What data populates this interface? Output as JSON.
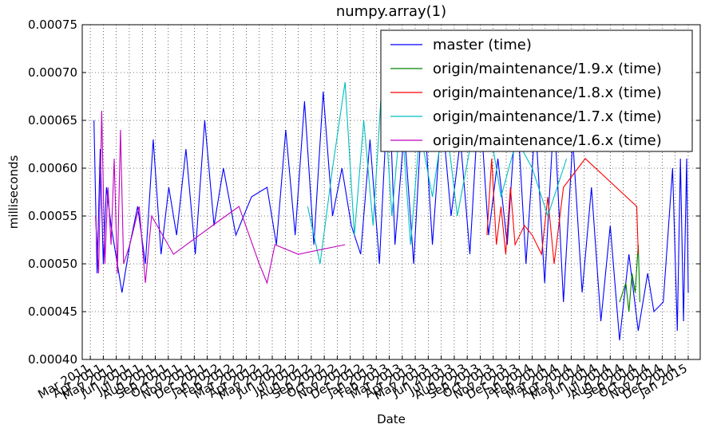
{
  "chart_data": {
    "type": "line",
    "title": "numpy.array(1)",
    "xlabel": "Date",
    "ylabel": "milliseconds",
    "xlim": [
      2011.115,
      2015.077
    ],
    "ylim": [
      0.0004,
      0.00075
    ],
    "yticks": [
      {
        "value": 0.0004,
        "label": "0.00040"
      },
      0.00045,
      {
        "value": 0.0005,
        "label": "0.00050"
      },
      0.00055,
      {
        "value": 0.0006,
        "label": "0.00060"
      },
      0.00065,
      {
        "value": 0.0007,
        "label": "0.00070"
      },
      0.00075
    ],
    "xticks": [
      {
        "value": 2011.1667,
        "label": "Mar 2011"
      },
      {
        "value": 2011.25,
        "label": "Apr 2011"
      },
      {
        "value": 2011.3333,
        "label": "May 2011"
      },
      {
        "value": 2011.4167,
        "label": "Jun 2011"
      },
      {
        "value": 2011.5,
        "label": "Jul 2011"
      },
      {
        "value": 2011.5833,
        "label": "Aug 2011"
      },
      {
        "value": 2011.6667,
        "label": "Sep 2011"
      },
      {
        "value": 2011.75,
        "label": "Oct 2011"
      },
      {
        "value": 2011.8333,
        "label": "Nov 2011"
      },
      {
        "value": 2011.9167,
        "label": "Dec 2011"
      },
      {
        "value": 2012.0,
        "label": "Jan 2012"
      },
      {
        "value": 2012.0833,
        "label": "Feb 2012"
      },
      {
        "value": 2012.1667,
        "label": "Mar 2012"
      },
      {
        "value": 2012.25,
        "label": "Apr 2012"
      },
      {
        "value": 2012.3333,
        "label": "May 2012"
      },
      {
        "value": 2012.4167,
        "label": "Jun 2012"
      },
      {
        "value": 2012.5,
        "label": "Jul 2012"
      },
      {
        "value": 2012.5833,
        "label": "Aug 2012"
      },
      {
        "value": 2012.6667,
        "label": "Sep 2012"
      },
      {
        "value": 2012.75,
        "label": "Oct 2012"
      },
      {
        "value": 2012.8333,
        "label": "Nov 2012"
      },
      {
        "value": 2012.9167,
        "label": "Dec 2012"
      },
      {
        "value": 2013.0,
        "label": "Jan 2013"
      },
      {
        "value": 2013.0833,
        "label": "Feb 2013"
      },
      {
        "value": 2013.1667,
        "label": "Mar 2013"
      },
      {
        "value": 2013.25,
        "label": "Apr 2013"
      },
      {
        "value": 2013.3333,
        "label": "May 2013"
      },
      {
        "value": 2013.4167,
        "label": "Jun 2013"
      },
      {
        "value": 2013.5,
        "label": "Jul 2013"
      },
      {
        "value": 2013.5833,
        "label": "Aug 2013"
      },
      {
        "value": 2013.6667,
        "label": "Sep 2013"
      },
      {
        "value": 2013.75,
        "label": "Oct 2013"
      },
      {
        "value": 2013.8333,
        "label": "Nov 2013"
      },
      {
        "value": 2013.9167,
        "label": "Dec 2013"
      },
      {
        "value": 2014.0,
        "label": "Jan 2014"
      },
      {
        "value": 2014.0833,
        "label": "Feb 2014"
      },
      {
        "value": 2014.1667,
        "label": "Mar 2014"
      },
      {
        "value": 2014.25,
        "label": "Apr 2014"
      },
      {
        "value": 2014.3333,
        "label": "May 2014"
      },
      {
        "value": 2014.4167,
        "label": "Jun 2014"
      },
      {
        "value": 2014.5,
        "label": "Jul 2014"
      },
      {
        "value": 2014.5833,
        "label": "Aug 2014"
      },
      {
        "value": 2014.6667,
        "label": "Sep 2014"
      },
      {
        "value": 2014.75,
        "label": "Oct 2014"
      },
      {
        "value": 2014.8333,
        "label": "Nov 2014"
      },
      {
        "value": 2014.9167,
        "label": "Dec 2014"
      },
      {
        "value": 2015.0,
        "label": "Jan 2015"
      }
    ],
    "grid": true,
    "legend_loc": "upper right",
    "series": [
      {
        "name": "master (time)",
        "color": "#0000ff",
        "x": [
          2011.19,
          2011.21,
          2011.23,
          2011.25,
          2011.27,
          2011.3,
          2011.37,
          2011.42,
          2011.47,
          2011.52,
          2011.57,
          2011.62,
          2011.67,
          2011.72,
          2011.78,
          2011.84,
          2011.9,
          2011.96,
          2012.02,
          2012.1,
          2012.2,
          2012.3,
          2012.36,
          2012.42,
          2012.48,
          2012.54,
          2012.6,
          2012.66,
          2012.72,
          2012.78,
          2012.84,
          2012.9,
          2012.96,
          2013.02,
          2013.08,
          2013.12,
          2013.18,
          2013.24,
          2013.3,
          2013.36,
          2013.42,
          2013.48,
          2013.54,
          2013.6,
          2013.66,
          2013.72,
          2013.78,
          2013.84,
          2013.9,
          2013.96,
          2014.02,
          2014.08,
          2014.14,
          2014.2,
          2014.26,
          2014.32,
          2014.38,
          2014.44,
          2014.5,
          2014.56,
          2014.62,
          2014.68,
          2014.74,
          2014.78,
          2014.84,
          2014.9,
          2014.93,
          2014.95,
          2014.97,
          2014.99,
          2015.0
        ],
        "values": [
          0.00065,
          0.00049,
          0.00062,
          0.0005,
          0.00058,
          0.00054,
          0.00047,
          0.00052,
          0.00056,
          0.0005,
          0.00063,
          0.00051,
          0.00058,
          0.00053,
          0.00062,
          0.00051,
          0.00065,
          0.00054,
          0.0006,
          0.00053,
          0.00057,
          0.00058,
          0.00052,
          0.00064,
          0.00053,
          0.00067,
          0.00052,
          0.00068,
          0.00055,
          0.0006,
          0.00054,
          0.00051,
          0.00063,
          0.0005,
          0.0007,
          0.00052,
          0.00064,
          0.0005,
          0.00068,
          0.00052,
          0.00066,
          0.00055,
          0.00063,
          0.00051,
          0.00068,
          0.00053,
          0.00061,
          0.00052,
          0.00067,
          0.0005,
          0.00065,
          0.00048,
          0.00066,
          0.00046,
          0.00063,
          0.00047,
          0.00058,
          0.00044,
          0.00054,
          0.00042,
          0.00051,
          0.00043,
          0.00049,
          0.00045,
          0.00046,
          0.0006,
          0.00043,
          0.00061,
          0.00044,
          0.00061,
          0.00047
        ]
      },
      {
        "name": "origin/maintenance/1.9.x (time)",
        "color": "#008000",
        "x": [
          2014.56,
          2014.6,
          2014.62,
          2014.64,
          2014.66,
          2014.68,
          2014.69
        ],
        "values": [
          0.00046,
          0.00048,
          0.00045,
          0.00049,
          0.00047,
          0.00052,
          0.00046
        ]
      },
      {
        "name": "origin/maintenance/1.8.x (time)",
        "color": "#ff0000",
        "x": [
          2013.71,
          2013.74,
          2013.77,
          2013.8,
          2013.83,
          2013.86,
          2013.89,
          2013.95,
          2014.0,
          2014.06,
          2014.1,
          2014.14,
          2014.2,
          2014.34,
          2014.67,
          2014.68
        ],
        "values": [
          0.00053,
          0.00061,
          0.00052,
          0.00056,
          0.00051,
          0.00058,
          0.00052,
          0.00054,
          0.00053,
          0.00051,
          0.00057,
          0.0005,
          0.00058,
          0.00061,
          0.00056,
          0.00051
        ]
      },
      {
        "name": "origin/maintenance/1.7.x (time)",
        "color": "#00bfbf",
        "x": [
          2012.56,
          2012.64,
          2012.72,
          2012.8,
          2012.86,
          2012.92,
          2012.98,
          2013.04,
          2013.1,
          2013.16,
          2013.22,
          2013.28,
          2013.36,
          2013.44,
          2013.52,
          2013.6,
          2013.7,
          2013.8,
          2013.9,
          2014.0,
          2014.1,
          2014.22
        ],
        "values": [
          0.00056,
          0.0005,
          0.0006,
          0.00069,
          0.00053,
          0.00065,
          0.00054,
          0.0007,
          0.00055,
          0.00066,
          0.00052,
          0.00064,
          0.00057,
          0.00066,
          0.00055,
          0.00062,
          0.00067,
          0.00057,
          0.00063,
          0.0006,
          0.00055,
          0.00061
        ]
      },
      {
        "name": "origin/maintenance/1.6.x (time)",
        "color": "#bf00bf",
        "x": [
          2011.2,
          2011.22,
          2011.24,
          2011.26,
          2011.28,
          2011.3,
          2011.32,
          2011.34,
          2011.36,
          2011.38,
          2011.42,
          2011.48,
          2011.52,
          2011.56,
          2011.7,
          2011.95,
          2012.12,
          2012.25,
          2012.3,
          2012.35,
          2012.5,
          2012.8
        ],
        "values": [
          0.00055,
          0.00049,
          0.00066,
          0.0005,
          0.00058,
          0.00052,
          0.00061,
          0.00049,
          0.00064,
          0.0005,
          0.00052,
          0.00056,
          0.00048,
          0.00055,
          0.00051,
          0.00054,
          0.00056,
          0.0005,
          0.00048,
          0.00052,
          0.00051,
          0.00052
        ]
      }
    ]
  }
}
